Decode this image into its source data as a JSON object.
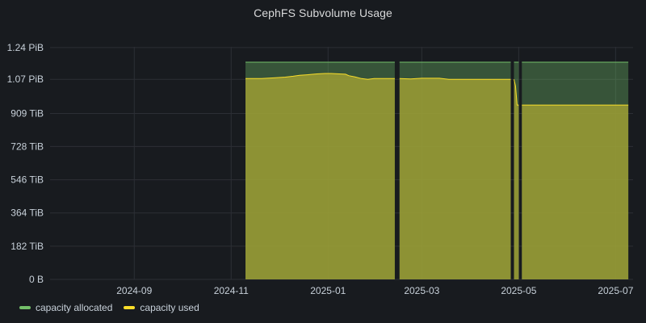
{
  "panel": {
    "title": "CephFS Subvolume Usage"
  },
  "colors": {
    "allocated": "#73bf69",
    "used": "#fade2a",
    "grid": "#2c2f35",
    "background": "#181b1f"
  },
  "legend": [
    {
      "label": "capacity allocated",
      "color": "#73bf69"
    },
    {
      "label": "capacity used",
      "color": "#fade2a"
    }
  ],
  "chart_data": {
    "type": "area",
    "title": "CephFS Subvolume Usage",
    "xlabel": "",
    "ylabel": "",
    "x_unit": "date",
    "y_unit": "TiB",
    "xlim": [
      "2024-07-10",
      "2025-07-12"
    ],
    "ylim": [
      0,
      1274
    ],
    "x_ticks": [
      "2024-09",
      "2024-11",
      "2025-01",
      "2025-03",
      "2025-05",
      "2025-07"
    ],
    "y_ticks": [
      {
        "value": 0,
        "label": "0 B"
      },
      {
        "value": 182,
        "label": "182 TiB"
      },
      {
        "value": 364,
        "label": "364 TiB"
      },
      {
        "value": 546,
        "label": "546 TiB"
      },
      {
        "value": 728,
        "label": "728 TiB"
      },
      {
        "value": 909,
        "label": "909 TiB"
      },
      {
        "value": 1096,
        "label": "1.07 PiB"
      },
      {
        "value": 1270,
        "label": "1.24 PiB"
      }
    ],
    "grid": true,
    "legend_position": "bottom-left",
    "series": [
      {
        "name": "capacity allocated",
        "segments": [
          {
            "x": [
              "2024-11-10",
              "2025-02-12"
            ],
            "y": [
              1190,
              1190
            ]
          },
          {
            "x": [
              "2025-02-15",
              "2025-04-26"
            ],
            "y": [
              1190,
              1190
            ]
          },
          {
            "x": [
              "2025-04-28",
              "2025-05-01"
            ],
            "y": [
              1190,
              1190
            ]
          },
          {
            "x": [
              "2025-05-03",
              "2025-07-09"
            ],
            "y": [
              1190,
              1190
            ]
          }
        ]
      },
      {
        "name": "capacity used",
        "segments": [
          {
            "x": [
              "2024-11-10",
              "2024-11-20",
              "2024-11-28",
              "2024-12-05",
              "2024-12-10",
              "2024-12-14",
              "2024-12-20",
              "2024-12-25",
              "2024-12-30",
              "2025-01-03",
              "2025-01-08",
              "2025-01-12",
              "2025-01-14",
              "2025-01-18",
              "2025-01-22",
              "2025-01-26",
              "2025-01-30",
              "2025-02-12"
            ],
            "y": [
              1100,
              1100,
              1104,
              1108,
              1113,
              1118,
              1122,
              1126,
              1128,
              1128,
              1126,
              1124,
              1116,
              1109,
              1100,
              1096,
              1100,
              1100
            ]
          },
          {
            "x": [
              "2025-02-15",
              "2025-02-22",
              "2025-03-01",
              "2025-03-12",
              "2025-03-18",
              "2025-04-26"
            ],
            "y": [
              1100,
              1098,
              1102,
              1102,
              1096,
              1096
            ]
          },
          {
            "x": [
              "2025-04-28",
              "2025-04-29",
              "2025-04-30",
              "2025-05-01"
            ],
            "y": [
              1096,
              1060,
              955,
              955
            ]
          },
          {
            "x": [
              "2025-05-03",
              "2025-07-09"
            ],
            "y": [
              955,
              955
            ]
          }
        ]
      }
    ]
  }
}
